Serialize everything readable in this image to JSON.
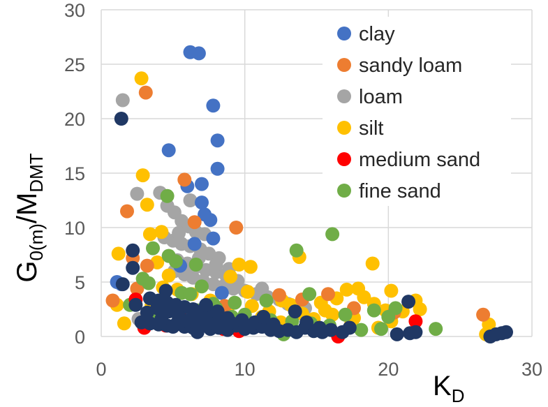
{
  "chart_data": {
    "type": "scatter",
    "title": "",
    "xlabel": {
      "main": "K",
      "sub": "D"
    },
    "ylabel": {
      "main1": "G",
      "sub1": "0(m)",
      "main2": "/M",
      "sub2": "DMT"
    },
    "xlim": [
      0,
      30
    ],
    "ylim": [
      0,
      30
    ],
    "xticks": [
      "0",
      "10",
      "20",
      "30"
    ],
    "yticks": [
      "0",
      "5",
      "10",
      "15",
      "20",
      "25",
      "30"
    ],
    "grid": true,
    "legend_position": "top-right",
    "series": [
      {
        "name": "clay",
        "color": "#4472C4",
        "points": [
          [
            6.2,
            26.1
          ],
          [
            6.8,
            26.0
          ],
          [
            7.8,
            21.2
          ],
          [
            8.1,
            18.0
          ],
          [
            4.7,
            17.1
          ],
          [
            8.1,
            15.4
          ],
          [
            6.0,
            13.8
          ],
          [
            7.0,
            14.0
          ],
          [
            7.0,
            12.3
          ],
          [
            7.2,
            11.2
          ],
          [
            7.6,
            10.7
          ],
          [
            7.8,
            9.0
          ],
          [
            6.5,
            8.5
          ],
          [
            1.1,
            5.0
          ],
          [
            1.4,
            4.8
          ],
          [
            5.5,
            6.5
          ],
          [
            8.4,
            4.0
          ]
        ]
      },
      {
        "name": "sandy loam",
        "color": "#ED7D31",
        "points": [
          [
            3.1,
            22.4
          ],
          [
            1.8,
            11.5
          ],
          [
            5.8,
            14.4
          ],
          [
            9.4,
            10.0
          ],
          [
            6.5,
            10.5
          ],
          [
            3.2,
            6.5
          ],
          [
            2.2,
            7.2
          ],
          [
            2.5,
            4.4
          ],
          [
            0.8,
            3.3
          ],
          [
            14.0,
            3.4
          ],
          [
            15.8,
            3.9
          ],
          [
            17.6,
            2.6
          ],
          [
            26.6,
            2.0
          ],
          [
            8.6,
            2.8
          ],
          [
            12.4,
            3.8
          ],
          [
            20.4,
            2.2
          ]
        ]
      },
      {
        "name": "loam",
        "color": "#A5A5A5",
        "points": [
          [
            1.5,
            21.7
          ],
          [
            2.5,
            13.1
          ],
          [
            4.1,
            13.2
          ],
          [
            4.6,
            12.0
          ],
          [
            5.1,
            11.4
          ],
          [
            5.6,
            10.6
          ],
          [
            6.1,
            10.1
          ],
          [
            6.6,
            9.6
          ],
          [
            4.4,
            9.1
          ],
          [
            5.0,
            8.8
          ],
          [
            5.6,
            8.5
          ],
          [
            6.2,
            8.3
          ],
          [
            6.9,
            8.0
          ],
          [
            7.5,
            7.6
          ],
          [
            8.2,
            7.2
          ],
          [
            4.7,
            7.4
          ],
          [
            5.3,
            7.0
          ],
          [
            6.0,
            6.7
          ],
          [
            6.6,
            6.4
          ],
          [
            7.3,
            6.1
          ],
          [
            8.0,
            5.9
          ],
          [
            8.7,
            5.6
          ],
          [
            5.1,
            6.0
          ],
          [
            5.8,
            5.7
          ],
          [
            6.4,
            5.4
          ],
          [
            7.1,
            5.1
          ],
          [
            7.8,
            4.8
          ],
          [
            8.5,
            4.6
          ],
          [
            9.2,
            4.4
          ],
          [
            10.0,
            4.2
          ],
          [
            10.8,
            3.9
          ],
          [
            11.6,
            3.6
          ],
          [
            12.4,
            3.4
          ],
          [
            6.2,
            12.5
          ],
          [
            7.2,
            9.4
          ],
          [
            8.0,
            6.6
          ],
          [
            9.5,
            5.1
          ],
          [
            11.2,
            4.4
          ],
          [
            13.0,
            3.0
          ],
          [
            14.2,
            2.6
          ],
          [
            5.4,
            9.5
          ],
          [
            6.8,
            7.2
          ],
          [
            8.9,
            6.2
          ],
          [
            2.6,
            1.6
          ]
        ]
      },
      {
        "name": "silt",
        "color": "#FFC000",
        "points": [
          [
            2.8,
            23.7
          ],
          [
            2.9,
            14.8
          ],
          [
            3.2,
            12.1
          ],
          [
            4.2,
            9.6
          ],
          [
            3.4,
            9.4
          ],
          [
            1.2,
            7.6
          ],
          [
            3.9,
            6.8
          ],
          [
            4.7,
            5.6
          ],
          [
            9.6,
            6.6
          ],
          [
            10.4,
            6.4
          ],
          [
            9.0,
            5.5
          ],
          [
            13.8,
            7.3
          ],
          [
            18.9,
            6.7
          ],
          [
            10.2,
            4.1
          ],
          [
            12.6,
            3.3
          ],
          [
            17.1,
            4.3
          ],
          [
            17.9,
            4.4
          ],
          [
            20.2,
            4.2
          ],
          [
            21.9,
            3.3
          ],
          [
            22.2,
            2.5
          ],
          [
            19.0,
            3.0
          ],
          [
            15.3,
            3.1
          ],
          [
            14.0,
            2.1
          ],
          [
            13.2,
            2.9
          ],
          [
            11.7,
            2.3
          ],
          [
            10.5,
            2.8
          ],
          [
            8.8,
            2.6
          ],
          [
            7.6,
            3.3
          ],
          [
            6.3,
            3.9
          ],
          [
            5.3,
            4.3
          ],
          [
            4.3,
            4.5
          ],
          [
            3.5,
            2.8
          ],
          [
            1.6,
            1.2
          ],
          [
            1.1,
            2.9
          ],
          [
            21.0,
            2.3
          ],
          [
            20.2,
            1.4
          ],
          [
            19.3,
            0.8
          ],
          [
            17.4,
            1.1
          ],
          [
            16.1,
            2.0
          ],
          [
            14.8,
            1.6
          ],
          [
            12.5,
            1.3
          ],
          [
            11.2,
            1.8
          ],
          [
            27.0,
            1.1
          ],
          [
            26.8,
            0.2
          ],
          [
            16.4,
            3.5
          ],
          [
            18.3,
            3.6
          ],
          [
            15.6,
            2.4
          ],
          [
            13.5,
            2.4
          ],
          [
            17.6,
            1.7
          ],
          [
            19.8,
            2.4
          ]
        ]
      },
      {
        "name": "medium sand",
        "color": "#FF0000",
        "points": [
          [
            3.0,
            0.8
          ],
          [
            2.4,
            3.4
          ],
          [
            4.5,
            1.0
          ],
          [
            8.5,
            0.7
          ],
          [
            16.5,
            0.0
          ],
          [
            21.9,
            1.4
          ],
          [
            5.5,
            2.4
          ],
          [
            7.0,
            1.3
          ],
          [
            9.6,
            0.5
          ]
        ]
      },
      {
        "name": "fine sand",
        "color": "#70AD47",
        "points": [
          [
            4.6,
            12.9
          ],
          [
            3.6,
            8.1
          ],
          [
            4.7,
            7.4
          ],
          [
            5.2,
            6.9
          ],
          [
            6.6,
            6.6
          ],
          [
            2.9,
            5.3
          ],
          [
            3.3,
            4.9
          ],
          [
            7.0,
            4.6
          ],
          [
            5.6,
            4.0
          ],
          [
            6.2,
            3.9
          ],
          [
            13.6,
            7.9
          ],
          [
            16.1,
            9.4
          ],
          [
            14.5,
            3.9
          ],
          [
            11.5,
            3.3
          ],
          [
            9.3,
            3.1
          ],
          [
            8.0,
            2.6
          ],
          [
            19.0,
            2.4
          ],
          [
            20.5,
            2.6
          ],
          [
            23.3,
            0.7
          ],
          [
            20.0,
            1.8
          ],
          [
            17.0,
            2.0
          ],
          [
            15.9,
            1.0
          ],
          [
            13.3,
            1.4
          ],
          [
            11.8,
            1.5
          ],
          [
            10.5,
            0.9
          ],
          [
            9.1,
            1.8
          ],
          [
            7.8,
            3.0
          ],
          [
            6.7,
            2.4
          ],
          [
            2.0,
            2.9
          ],
          [
            3.9,
            2.1
          ],
          [
            5.3,
            2.2
          ],
          [
            12.7,
            0.2
          ],
          [
            14.6,
            1.2
          ],
          [
            18.1,
            0.6
          ],
          [
            19.5,
            0.7
          ],
          [
            10.0,
            2.0
          ]
        ]
      },
      {
        "name": "",
        "color": "#203864",
        "points": [
          [
            1.4,
            20.0
          ],
          [
            2.2,
            7.9
          ],
          [
            2.2,
            6.3
          ],
          [
            1.5,
            4.8
          ],
          [
            4.5,
            4.2
          ],
          [
            3.4,
            3.5
          ],
          [
            4.0,
            3.3
          ],
          [
            4.6,
            3.1
          ],
          [
            5.2,
            2.9
          ],
          [
            5.8,
            2.7
          ],
          [
            6.4,
            2.5
          ],
          [
            7.0,
            2.3
          ],
          [
            7.6,
            2.1
          ],
          [
            8.2,
            1.9
          ],
          [
            8.8,
            1.7
          ],
          [
            2.8,
            1.3
          ],
          [
            3.4,
            1.2
          ],
          [
            4.0,
            1.1
          ],
          [
            4.6,
            1.0
          ],
          [
            5.2,
            1.1
          ],
          [
            5.8,
            0.9
          ],
          [
            6.4,
            0.8
          ],
          [
            7.0,
            1.0
          ],
          [
            7.6,
            0.7
          ],
          [
            8.2,
            0.8
          ],
          [
            8.8,
            0.6
          ],
          [
            9.4,
            1.0
          ],
          [
            10.0,
            0.7
          ],
          [
            10.6,
            0.8
          ],
          [
            11.2,
            0.9
          ],
          [
            11.8,
            0.6
          ],
          [
            12.4,
            0.5
          ],
          [
            13.0,
            0.6
          ],
          [
            13.6,
            0.4
          ],
          [
            14.2,
            0.8
          ],
          [
            14.8,
            0.5
          ],
          [
            15.4,
            0.4
          ],
          [
            16.0,
            0.6
          ],
          [
            17.3,
            0.8
          ],
          [
            21.4,
            3.2
          ],
          [
            20.6,
            0.2
          ],
          [
            21.5,
            0.3
          ],
          [
            21.9,
            0.4
          ],
          [
            27.1,
            0.0
          ],
          [
            27.5,
            0.2
          ],
          [
            27.9,
            0.3
          ],
          [
            28.2,
            0.4
          ],
          [
            2.4,
            2.9
          ],
          [
            3.2,
            2.2
          ],
          [
            3.9,
            2.6
          ],
          [
            4.7,
            2.3
          ],
          [
            5.4,
            1.8
          ],
          [
            6.1,
            1.5
          ],
          [
            6.8,
            1.6
          ],
          [
            7.5,
            1.2
          ],
          [
            8.1,
            2.3
          ],
          [
            9.0,
            1.3
          ],
          [
            9.8,
            1.5
          ],
          [
            10.7,
            1.3
          ],
          [
            11.3,
            1.8
          ],
          [
            12.0,
            1.1
          ],
          [
            13.5,
            2.3
          ],
          [
            14.3,
            1.3
          ],
          [
            15.2,
            0.8
          ],
          [
            16.8,
            0.4
          ],
          [
            4.2,
            1.6
          ],
          [
            5.0,
            0.9
          ],
          [
            6.0,
            1.4
          ],
          [
            6.7,
            0.4
          ],
          [
            7.3,
            2.9
          ],
          [
            8.5,
            1.0
          ]
        ]
      }
    ]
  }
}
